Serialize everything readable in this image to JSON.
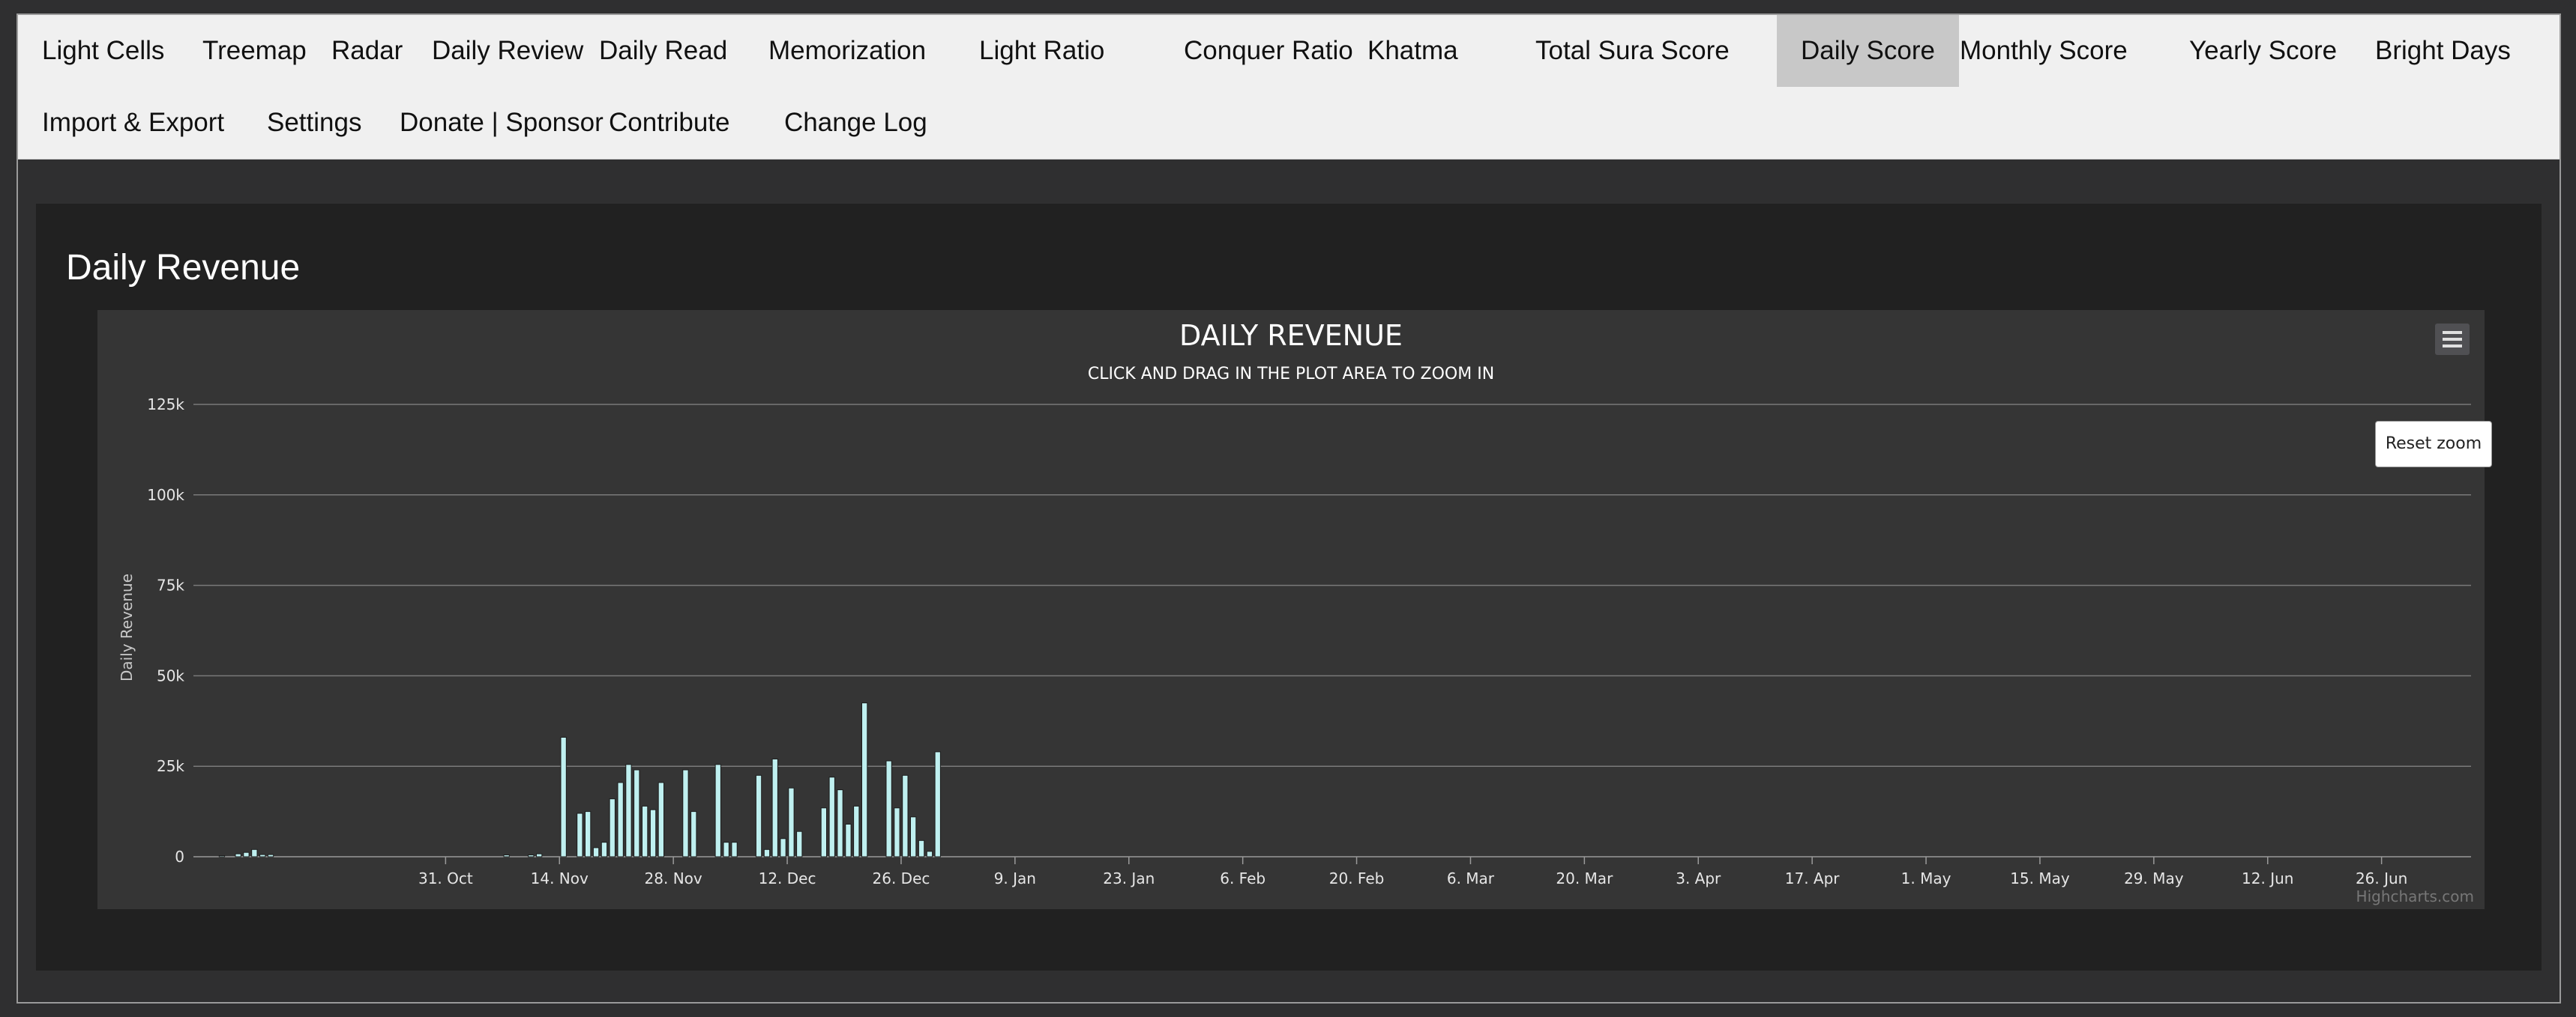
{
  "nav": {
    "items": [
      {
        "label": "Light Cells"
      },
      {
        "label": "Treemap"
      },
      {
        "label": "Radar"
      },
      {
        "label": "Daily Review"
      },
      {
        "label": "Daily Read"
      },
      {
        "label": "Memorization"
      },
      {
        "label": "Light Ratio"
      },
      {
        "label": "Conquer Ratio"
      },
      {
        "label": "Khatma"
      },
      {
        "label": "Total Sura Score"
      },
      {
        "label": "Daily Score",
        "active": true
      },
      {
        "label": "Monthly Score"
      },
      {
        "label": "Yearly Score"
      },
      {
        "label": "Bright Days"
      },
      {
        "label": "Import & Export"
      },
      {
        "label": "Settings"
      },
      {
        "label": "Donate | Sponsor"
      },
      {
        "label": "Contribute"
      },
      {
        "label": "Change Log"
      }
    ]
  },
  "page": {
    "title": "Daily Revenue"
  },
  "chart_controls": {
    "reset_zoom_label": "Reset zoom",
    "credits": "Highcharts.com"
  },
  "colors": {
    "bar_fill": "#bff0f0",
    "bar_stroke": "#1c1c1c",
    "plot_bg": "#353535",
    "grid": "#7a7a7a"
  },
  "chart_data": {
    "type": "bar",
    "title": "DAILY REVENUE",
    "subtitle": "CLICK AND DRAG IN THE PLOT AREA TO ZOOM IN",
    "ylabel": "Daily Revenue",
    "xlabel": "",
    "ylim": [
      0,
      125000
    ],
    "yticks": [
      {
        "value": 0,
        "label": "0"
      },
      {
        "value": 25000,
        "label": "25k"
      },
      {
        "value": 50000,
        "label": "50k"
      },
      {
        "value": 75000,
        "label": "75k"
      },
      {
        "value": 100000,
        "label": "100k"
      },
      {
        "value": 125000,
        "label": "125k"
      }
    ],
    "xlim": [
      0,
      280
    ],
    "xticks": [
      {
        "day": 31,
        "label": "31. Oct"
      },
      {
        "day": 45,
        "label": "14. Nov"
      },
      {
        "day": 59,
        "label": "28. Nov"
      },
      {
        "day": 73,
        "label": "12. Dec"
      },
      {
        "day": 87,
        "label": "26. Dec"
      },
      {
        "day": 101,
        "label": "9. Jan"
      },
      {
        "day": 115,
        "label": "23. Jan"
      },
      {
        "day": 129,
        "label": "6. Feb"
      },
      {
        "day": 143,
        "label": "20. Feb"
      },
      {
        "day": 157,
        "label": "6. Mar"
      },
      {
        "day": 171,
        "label": "20. Mar"
      },
      {
        "day": 185,
        "label": "3. Apr"
      },
      {
        "day": 199,
        "label": "17. Apr"
      },
      {
        "day": 213,
        "label": "1. May"
      },
      {
        "day": 227,
        "label": "15. May"
      },
      {
        "day": 241,
        "label": "29. May"
      },
      {
        "day": 255,
        "label": "12. Jun"
      },
      {
        "day": 269,
        "label": "26. Jun"
      }
    ],
    "grid": true,
    "legend": "none",
    "values": [
      0,
      0,
      0,
      300,
      0,
      800,
      1200,
      2000,
      600,
      600,
      0,
      0,
      0,
      0,
      0,
      0,
      0,
      0,
      0,
      0,
      0,
      0,
      0,
      0,
      0,
      0,
      0,
      0,
      0,
      0,
      0,
      0,
      0,
      0,
      0,
      0,
      0,
      0,
      500,
      0,
      0,
      500,
      800,
      0,
      0,
      33000,
      0,
      12000,
      12500,
      2500,
      4000,
      16000,
      20500,
      25500,
      24000,
      14000,
      13000,
      20500,
      0,
      0,
      24000,
      12500,
      0,
      0,
      25500,
      4000,
      4000,
      0,
      0,
      22500,
      2000,
      27000,
      5000,
      19000,
      7000,
      0,
      0,
      13500,
      22000,
      18500,
      9000,
      14000,
      42500,
      0,
      0,
      26500,
      13500,
      22500,
      11000,
      4500,
      1500,
      29000,
      0,
      0,
      0,
      0,
      0,
      0,
      0,
      0,
      0,
      0,
      0,
      0,
      0,
      0,
      0,
      0,
      0,
      0,
      0,
      0,
      0,
      0,
      0,
      0,
      0,
      0,
      0,
      0,
      0,
      0,
      0,
      0,
      0,
      0,
      0,
      0,
      0,
      0,
      0,
      0,
      0,
      0,
      0,
      0,
      0,
      0,
      0,
      0,
      0,
      0,
      0,
      0,
      0,
      0,
      0,
      0,
      0,
      0,
      0,
      0,
      0,
      0,
      0,
      0,
      0,
      0,
      0,
      0,
      0,
      0,
      0,
      0,
      0,
      0,
      0,
      0,
      0,
      0,
      0,
      0,
      0,
      0,
      0,
      0,
      0,
      0,
      0,
      0,
      0,
      0,
      0,
      0,
      0,
      0,
      0,
      0,
      0,
      0,
      0,
      0,
      0,
      0,
      0,
      0,
      0,
      0,
      0,
      0,
      0,
      0,
      0,
      0,
      0,
      0,
      0,
      0,
      0,
      0,
      0,
      0,
      0,
      0,
      0,
      0,
      0,
      0,
      0,
      0,
      0,
      0,
      0,
      0,
      0,
      0,
      0,
      0,
      0,
      0,
      0,
      0,
      0,
      0,
      0,
      0,
      0,
      0,
      0,
      0,
      0,
      0,
      0,
      0,
      0,
      0,
      0,
      0,
      0,
      0,
      0,
      0,
      0,
      0,
      0,
      0,
      0,
      0,
      0,
      0,
      0,
      0,
      0,
      0,
      0,
      0,
      0,
      0,
      0,
      0,
      0,
      0,
      0,
      0,
      0,
      0,
      0,
      0,
      0,
      0
    ]
  }
}
